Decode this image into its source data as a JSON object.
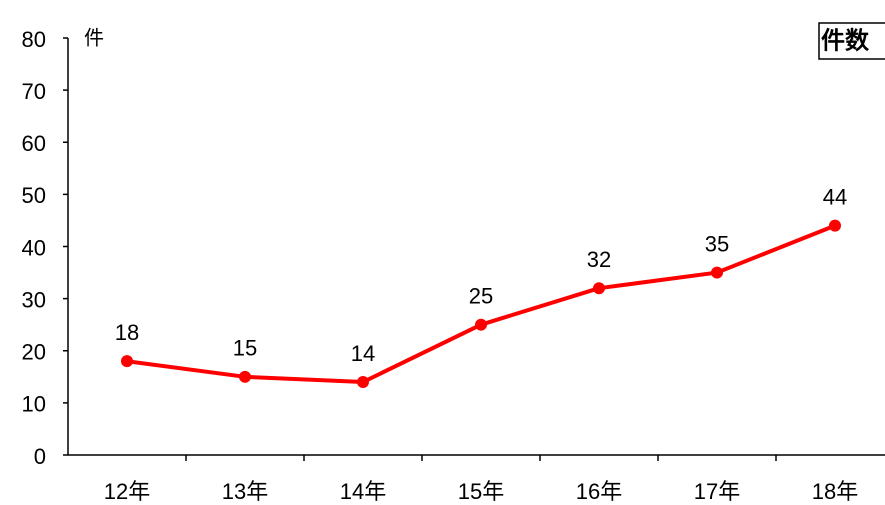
{
  "chart_data": {
    "type": "line",
    "y_unit_label": "件",
    "categories": [
      "12年",
      "13年",
      "14年",
      "15年",
      "16年",
      "17年",
      "18年"
    ],
    "series": [
      {
        "name": "件数",
        "color": "#ff0000",
        "values": [
          18,
          15,
          14,
          25,
          32,
          35,
          44
        ]
      }
    ],
    "ylim": [
      0,
      80
    ],
    "yticks": [
      0,
      10,
      20,
      30,
      40,
      50,
      60,
      70,
      80
    ],
    "legend": "top-right",
    "grid": false
  }
}
